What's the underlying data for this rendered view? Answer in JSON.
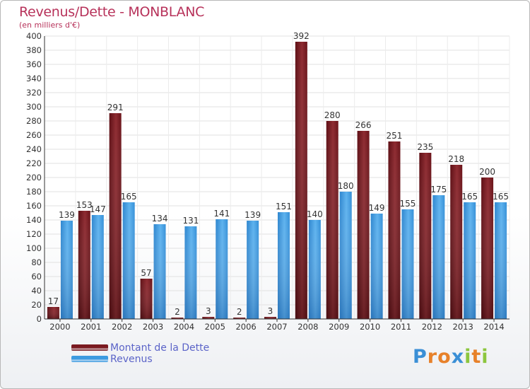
{
  "title": "Revenus/Dette - MONBLANC",
  "subtitle": "(en milliers d'€)",
  "logo": {
    "text": "Proxiti",
    "letters": [
      "P",
      "r",
      "o",
      "x",
      "i",
      "t",
      "i"
    ],
    "colors": [
      "#3a8fd6",
      "#e7812a",
      "#e7812a",
      "#3a8fd6",
      "#8cc63e",
      "#e7812a",
      "#8cc63e"
    ]
  },
  "legend": [
    {
      "label": "Montant de la Dette",
      "color": "#7a1a20"
    },
    {
      "label": "Revenus",
      "color": "#3d9be0"
    }
  ],
  "chart_data": {
    "type": "bar",
    "title": "Revenus/Dette - MONBLANC",
    "ylabel": "(en milliers d'€)",
    "xlabel": "",
    "categories": [
      "2000",
      "2001",
      "2002",
      "2003",
      "2004",
      "2005",
      "2006",
      "2007",
      "2008",
      "2009",
      "2010",
      "2011",
      "2012",
      "2013",
      "2014"
    ],
    "series": [
      {
        "name": "Montant de la Dette",
        "color": "#7a1a20",
        "values": [
          17,
          153,
          291,
          57,
          2,
          3,
          2,
          3,
          392,
          280,
          266,
          251,
          235,
          218,
          200
        ]
      },
      {
        "name": "Revenus",
        "color": "#3d9be0",
        "values": [
          139,
          147,
          165,
          134,
          131,
          141,
          139,
          151,
          140,
          180,
          149,
          155,
          175,
          165,
          165
        ]
      }
    ],
    "ylim": [
      0,
      400
    ],
    "ytick_step": 20,
    "grid": true,
    "legend_position": "bottom-left"
  }
}
